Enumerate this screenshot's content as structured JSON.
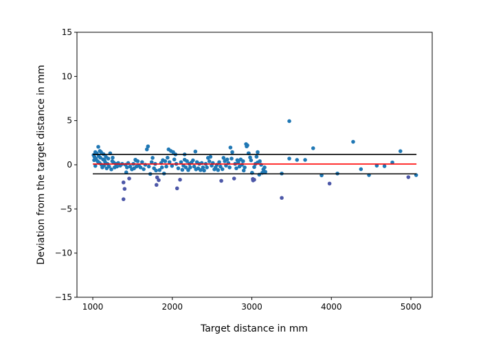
{
  "chart_data": {
    "type": "scatter",
    "title": "",
    "xlabel": "Target distance in mm",
    "ylabel": "Deviation from the target distance in mm",
    "xlim": [
      801,
      5268
    ],
    "ylim": [
      -15,
      15
    ],
    "xticks": [
      1000,
      2000,
      3000,
      4000,
      5000
    ],
    "yticks": [
      -15,
      -10,
      -5,
      0,
      5,
      10,
      15
    ],
    "xtick_labels": [
      "1000",
      "2000",
      "3000",
      "4000",
      "5000"
    ],
    "ytick_labels": [
      "−15",
      "−10",
      "−5",
      "0",
      "5",
      "10",
      "15"
    ],
    "grid": false,
    "colors": {
      "points": "#1f77b4",
      "low_points": "#4c57a8",
      "mean_line": "#ff0000",
      "limit_lines": "#000000"
    },
    "reference_lines": [
      {
        "kind": "upper-limit",
        "y": 1.17,
        "x": [
          1000,
          5070
        ],
        "color": "#000000"
      },
      {
        "kind": "mean",
        "y": 0.08,
        "x": [
          1000,
          5070
        ],
        "color": "#ff0000"
      },
      {
        "kind": "lower-limit",
        "y": -1.03,
        "x": [
          1000,
          5070
        ],
        "color": "#000000"
      }
    ],
    "points": [
      [
        1069,
        2.03
      ],
      [
        1032,
        1.43
      ],
      [
        1089,
        1.56
      ],
      [
        1104,
        1.43
      ],
      [
        1017,
        0.52
      ],
      [
        1032,
        -0.13
      ],
      [
        1147,
        0.52
      ],
      [
        1219,
        1.3
      ],
      [
        1262,
        0.26
      ],
      [
        1233,
        -0.52
      ],
      [
        1386,
        -2.0
      ],
      [
        1400,
        -2.73
      ],
      [
        1386,
        -3.9
      ],
      [
        1458,
        -1.56
      ],
      [
        1421,
        -0.86
      ],
      [
        1412,
        0.0
      ],
      [
        1536,
        0.57
      ],
      [
        1492,
        -0.52
      ],
      [
        1694,
        2.08
      ],
      [
        1680,
        1.74
      ],
      [
        1752,
        0.78
      ],
      [
        1723,
        -1.04
      ],
      [
        1801,
        -2.28
      ],
      [
        1809,
        -1.43
      ],
      [
        1829,
        -1.74
      ],
      [
        1795,
        -0.65
      ],
      [
        1896,
        -0.99
      ],
      [
        1881,
        0.52
      ],
      [
        1953,
        1.74
      ],
      [
        1982,
        1.56
      ],
      [
        2011,
        1.43
      ],
      [
        2040,
        1.17
      ],
      [
        1996,
        -0.13
      ],
      [
        2060,
        -2.67
      ],
      [
        2097,
        -1.69
      ],
      [
        2126,
        -0.57
      ],
      [
        2155,
        1.17
      ],
      [
        2155,
        0.57
      ],
      [
        2290,
        1.5
      ],
      [
        2241,
        0.26
      ],
      [
        2298,
        -0.52
      ],
      [
        2400,
        -0.65
      ],
      [
        2449,
        0.78
      ],
      [
        2466,
        0.39
      ],
      [
        2529,
        -0.52
      ],
      [
        2616,
        -1.82
      ],
      [
        2644,
        0.78
      ],
      [
        2731,
        1.95
      ],
      [
        2754,
        1.43
      ],
      [
        2777,
        -1.56
      ],
      [
        2817,
        0.52
      ],
      [
        2898,
        -0.65
      ],
      [
        2927,
        2.34
      ],
      [
        2935,
        2.08
      ],
      [
        2961,
        1.3
      ],
      [
        3013,
        -1.61
      ],
      [
        3004,
        -0.91
      ],
      [
        2944,
        2.2
      ],
      [
        2958,
        1.3
      ],
      [
        2978,
        0.83
      ],
      [
        3073,
        1.43
      ],
      [
        3059,
        0.91
      ],
      [
        3073,
        0.26
      ],
      [
        3030,
        -0.26
      ],
      [
        3117,
        0.0
      ],
      [
        3145,
        -0.52
      ],
      [
        3002,
        -0.91
      ],
      [
        3093,
        -1.12
      ],
      [
        3131,
        -0.91
      ],
      [
        3016,
        -1.77
      ],
      [
        3030,
        -1.69
      ],
      [
        3471,
        4.94
      ],
      [
        4274,
        2.6
      ],
      [
        3771,
        1.87
      ],
      [
        4868,
        1.54
      ],
      [
        3471,
        0.7
      ],
      [
        3568,
        0.55
      ],
      [
        3670,
        0.55
      ],
      [
        4767,
        0.26
      ],
      [
        4571,
        -0.1
      ],
      [
        4668,
        -0.16
      ],
      [
        4372,
        -0.5
      ],
      [
        3376,
        -0.99
      ],
      [
        3877,
        -1.2
      ],
      [
        4076,
        -0.99
      ],
      [
        4473,
        -1.17
      ],
      [
        4968,
        -1.4
      ],
      [
        5066,
        -1.17
      ],
      [
        3977,
        -2.13
      ],
      [
        3376,
        -3.75
      ],
      [
        1010,
        1.1
      ],
      [
        1020,
        0.9
      ],
      [
        1040,
        0.7
      ],
      [
        1050,
        1.3
      ],
      [
        1060,
        0.4
      ],
      [
        1075,
        1.0
      ],
      [
        1085,
        0.2
      ],
      [
        1095,
        0.8
      ],
      [
        1110,
        0.0
      ],
      [
        1120,
        -0.3
      ],
      [
        1130,
        0.6
      ],
      [
        1140,
        -0.1
      ],
      [
        1155,
        0.3
      ],
      [
        1165,
        0.9
      ],
      [
        1175,
        -0.4
      ],
      [
        1185,
        0.1
      ],
      [
        1195,
        0.7
      ],
      [
        1205,
        -0.2
      ],
      [
        1245,
        0.4
      ],
      [
        1275,
        -0.3
      ],
      [
        1290,
        0.1
      ],
      [
        1305,
        -0.2
      ],
      [
        1320,
        0.2
      ],
      [
        1345,
        -0.1
      ],
      [
        1370,
        0.1
      ],
      [
        1430,
        -0.3
      ],
      [
        1445,
        0.2
      ],
      [
        1470,
        -0.2
      ],
      [
        1510,
        0.1
      ],
      [
        1520,
        -0.4
      ],
      [
        1550,
        -0.2
      ],
      [
        1565,
        0.4
      ],
      [
        1580,
        -0.1
      ],
      [
        1600,
        -0.3
      ],
      [
        1620,
        0.3
      ],
      [
        1640,
        -0.5
      ],
      [
        1660,
        0.0
      ],
      [
        1705,
        -0.2
      ],
      [
        1740,
        0.3
      ],
      [
        1770,
        -0.4
      ],
      [
        1785,
        0.1
      ],
      [
        1840,
        -0.6
      ],
      [
        1860,
        0.2
      ],
      [
        1870,
        -0.3
      ],
      [
        1910,
        0.4
      ],
      [
        1925,
        -0.2
      ],
      [
        1940,
        0.8
      ],
      [
        1965,
        0.3
      ],
      [
        2025,
        0.6
      ],
      [
        2050,
        0.1
      ],
      [
        2075,
        -0.4
      ],
      [
        2110,
        0.3
      ],
      [
        2140,
        -0.1
      ],
      [
        2170,
        -0.3
      ],
      [
        2185,
        0.4
      ],
      [
        2200,
        -0.6
      ],
      [
        2215,
        0.1
      ],
      [
        2225,
        -0.3
      ],
      [
        2260,
        0.5
      ],
      [
        2275,
        -0.2
      ],
      [
        2310,
        0.3
      ],
      [
        2325,
        -0.4
      ],
      [
        2340,
        0.1
      ],
      [
        2355,
        -0.6
      ],
      [
        2370,
        0.2
      ],
      [
        2385,
        -0.3
      ],
      [
        2420,
        0.1
      ],
      [
        2435,
        -0.3
      ],
      [
        2480,
        0.9
      ],
      [
        2495,
        -0.1
      ],
      [
        2510,
        0.2
      ],
      [
        2545,
        -0.3
      ],
      [
        2560,
        0.0
      ],
      [
        2575,
        -0.6
      ],
      [
        2590,
        0.3
      ],
      [
        2605,
        -0.2
      ],
      [
        2630,
        -0.5
      ],
      [
        2660,
        0.4
      ],
      [
        2675,
        -0.1
      ],
      [
        2690,
        0.6
      ],
      [
        2705,
        0.2
      ],
      [
        2720,
        -0.3
      ],
      [
        2745,
        0.7
      ],
      [
        2790,
        0.1
      ],
      [
        2805,
        -0.4
      ],
      [
        2830,
        0.3
      ],
      [
        2845,
        -0.2
      ],
      [
        2860,
        0.6
      ],
      [
        2875,
        0.0
      ],
      [
        2890,
        0.4
      ],
      [
        2910,
        -0.3
      ],
      [
        2990,
        0.5
      ],
      [
        3045,
        0.1
      ],
      [
        3100,
        0.4
      ],
      [
        3160,
        -0.3
      ],
      [
        3170,
        -0.8
      ],
      [
        1540,
        0.5
      ],
      [
        1250,
        0.8
      ],
      [
        1135,
        1.2
      ],
      [
        1070,
        0.3
      ]
    ]
  }
}
